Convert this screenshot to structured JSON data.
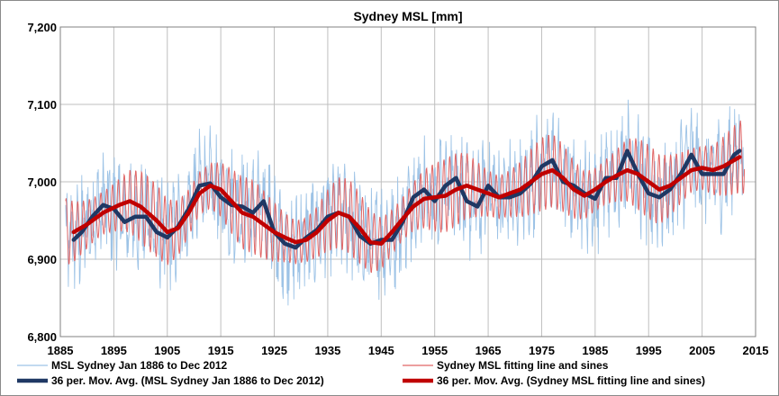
{
  "chart_data": {
    "type": "line",
    "title": "Sydney MSL [mm]",
    "xlabel": "",
    "ylabel": "",
    "xlim": [
      1885,
      2015
    ],
    "ylim": [
      6800,
      7200
    ],
    "x_ticks": [
      1885,
      1895,
      1905,
      1915,
      1925,
      1935,
      1945,
      1955,
      1965,
      1975,
      1985,
      1995,
      2005,
      2015
    ],
    "y_ticks": [
      6800,
      6900,
      7000,
      7100,
      7200
    ],
    "y_tick_labels": [
      "6,800",
      "6,900",
      "7,000",
      "7,100",
      "7,200"
    ],
    "grid": true,
    "legend_position": "bottom",
    "colors": {
      "msl": "#9dc3e6",
      "fit": "#e06666",
      "msl_avg": "#1f3864",
      "fit_avg": "#c00000"
    },
    "series": [
      {
        "name": "MSL Sydney Jan 1886 to Dec 2012",
        "style": "thin-line",
        "x_range": [
          1886,
          2012
        ],
        "description_values": "monthly values oscillating roughly ±60 mm around the moving average"
      },
      {
        "name": "Sydney MSL fitting line and sines",
        "style": "thin-line",
        "x_range": [
          1886,
          2012
        ],
        "description_values": "fitted line plus sines oscillating roughly ±45 mm around the fitted average"
      },
      {
        "name": "36 per. Mov. Avg. (MSL Sydney Jan 1886 to Dec 2012)",
        "style": "thick-line",
        "x": [
          1887.5,
          1889,
          1891,
          1893,
          1895,
          1897,
          1899,
          1901,
          1903,
          1905,
          1907,
          1909,
          1911,
          1913,
          1915,
          1917,
          1919,
          1921,
          1923,
          1925,
          1927,
          1929,
          1931,
          1933,
          1935,
          1937,
          1939,
          1941,
          1943,
          1945,
          1947,
          1949,
          1951,
          1953,
          1955,
          1957,
          1959,
          1961,
          1963,
          1965,
          1967,
          1969,
          1971,
          1973,
          1975,
          1977,
          1979,
          1981,
          1983,
          1985,
          1987,
          1989,
          1991,
          1993,
          1995,
          1997,
          1999,
          2001,
          2003,
          2005,
          2007,
          2009,
          2011,
          2012
        ],
        "values": [
          6925,
          6935,
          6955,
          6970,
          6965,
          6948,
          6955,
          6955,
          6935,
          6928,
          6942,
          6965,
          6995,
          6998,
          6980,
          6970,
          6968,
          6960,
          6975,
          6935,
          6920,
          6915,
          6928,
          6938,
          6955,
          6960,
          6955,
          6930,
          6920,
          6925,
          6925,
          6948,
          6980,
          6990,
          6975,
          6995,
          7005,
          6975,
          6968,
          6995,
          6980,
          6980,
          6985,
          6998,
          7020,
          7028,
          7000,
          6995,
          6985,
          6978,
          7005,
          7005,
          7040,
          7010,
          6985,
          6980,
          6990,
          7010,
          7035,
          7010,
          7010,
          7010,
          7035,
          7040
        ]
      },
      {
        "name": "36 per. Mov. Avg. (Sydney MSL fitting line and sines)",
        "style": "thick-line",
        "x": [
          1887.5,
          1890,
          1893,
          1896,
          1898,
          1900,
          1903,
          1905,
          1907,
          1909,
          1911,
          1913,
          1915,
          1917,
          1919,
          1921,
          1923,
          1925,
          1927,
          1929,
          1931,
          1933,
          1935,
          1937,
          1939,
          1941,
          1943,
          1945,
          1947,
          1949,
          1951,
          1953,
          1955,
          1957,
          1959,
          1961,
          1963,
          1965,
          1967,
          1969,
          1971,
          1973,
          1975,
          1977,
          1979,
          1981,
          1983,
          1985,
          1987,
          1989,
          1991,
          1993,
          1995,
          1997,
          1999,
          2001,
          2003,
          2005,
          2007,
          2009,
          2011,
          2012
        ],
        "values": [
          6935,
          6945,
          6960,
          6970,
          6975,
          6968,
          6950,
          6935,
          6940,
          6960,
          6985,
          6995,
          6990,
          6975,
          6960,
          6955,
          6945,
          6935,
          6928,
          6922,
          6925,
          6935,
          6950,
          6960,
          6955,
          6940,
          6922,
          6920,
          6935,
          6952,
          6968,
          6978,
          6980,
          6982,
          6990,
          6995,
          6990,
          6985,
          6980,
          6985,
          6990,
          7000,
          7010,
          7015,
          7005,
          6990,
          6982,
          6990,
          7000,
          7008,
          7015,
          7010,
          7000,
          6990,
          6995,
          7005,
          7015,
          7018,
          7015,
          7020,
          7028,
          7032
        ]
      }
    ]
  }
}
